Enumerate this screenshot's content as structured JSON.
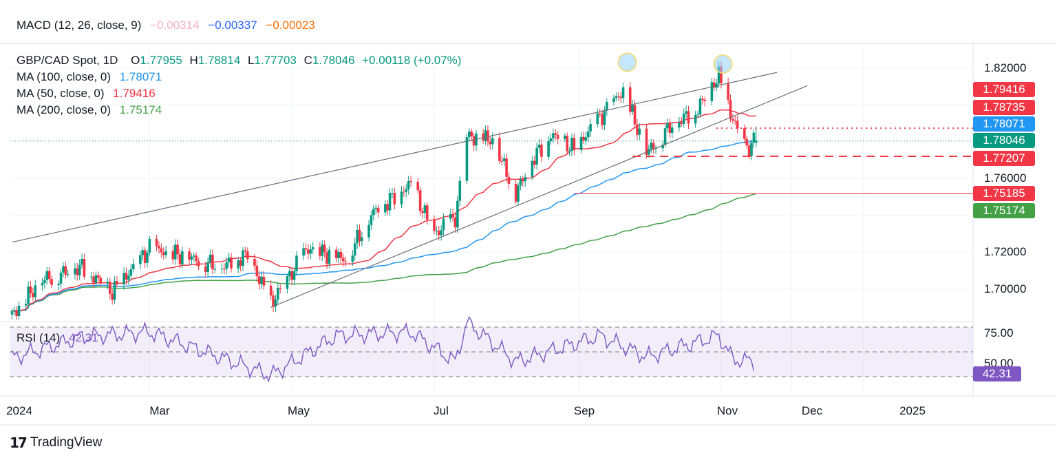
{
  "macd": {
    "label": "MACD (12, 26, close, 9)",
    "v1": "−0.00314",
    "v2": "−0.00337",
    "v3": "−0.00023"
  },
  "legend": {
    "symbol": "GBP/CAD Spot, 1D",
    "o_k": "O",
    "o": "1.77955",
    "h_k": "H",
    "h": "1.78814",
    "l_k": "L",
    "l": "1.77703",
    "c_k": "C",
    "c": "1.78046",
    "chg": "+0.00118 (+0.07%)",
    "ma100": {
      "label": "MA (100, close, 0)",
      "value": "1.78071",
      "color": "#2196f3"
    },
    "ma50": {
      "label": "MA (50, close, 0)",
      "value": "1.79416",
      "color": "#f23645"
    },
    "ma200": {
      "label": "MA (200, close, 0)",
      "value": "1.75174",
      "color": "#43a047"
    }
  },
  "rsi": {
    "label": "RSI (14)",
    "value": "42.31",
    "ticks": [
      "75.00",
      "50.00"
    ]
  },
  "price_axis": {
    "ticks": [
      "1.82000",
      "1.76000",
      "1.72000",
      "1.70000"
    ]
  },
  "price_labels": [
    {
      "text": "1.79416",
      "color": "#f23645"
    },
    {
      "text": "1.78735",
      "color": "#f23645"
    },
    {
      "text": "1.78071",
      "color": "#2196f3"
    },
    {
      "text": "1.78046",
      "color": "#089981"
    },
    {
      "text": "1.77207",
      "color": "#f23645"
    },
    {
      "text": "1.75185",
      "color": "#f23645"
    },
    {
      "text": "1.75174",
      "color": "#43a047"
    },
    {
      "text": "42.31",
      "color": "#7e57c2"
    }
  ],
  "time_axis": [
    "2024",
    "Mar",
    "May",
    "Jul",
    "Sep",
    "Nov",
    "Dec",
    "2025"
  ],
  "brand": {
    "name": "TradingView"
  },
  "chart_data": [
    {
      "type": "candlestick",
      "title": "GBP/CAD Spot, 1D",
      "x_range": [
        "2024-01",
        "2024-11"
      ],
      "ylim": [
        1.68,
        1.83
      ],
      "last": {
        "open": 1.77955,
        "high": 1.78814,
        "low": 1.77703,
        "close": 1.78046
      },
      "close_path": [
        [
          "2024-01-02",
          1.686
        ],
        [
          "2024-01-15",
          1.705
        ],
        [
          "2024-02-01",
          1.712
        ],
        [
          "2024-02-14",
          1.698
        ],
        [
          "2024-03-01",
          1.722
        ],
        [
          "2024-03-15",
          1.718
        ],
        [
          "2024-04-01",
          1.712
        ],
        [
          "2024-04-12",
          1.719
        ],
        [
          "2024-04-22",
          1.692
        ],
        [
          "2024-05-08",
          1.722
        ],
        [
          "2024-05-24",
          1.716
        ],
        [
          "2024-06-05",
          1.742
        ],
        [
          "2024-06-21",
          1.757
        ],
        [
          "2024-07-01",
          1.73
        ],
        [
          "2024-07-10",
          1.738
        ],
        [
          "2024-07-15",
          1.783
        ],
        [
          "2024-07-26",
          1.781
        ],
        [
          "2024-08-05",
          1.752
        ],
        [
          "2024-08-12",
          1.77
        ],
        [
          "2024-08-20",
          1.784
        ],
        [
          "2024-08-30",
          1.776
        ],
        [
          "2024-09-10",
          1.793
        ],
        [
          "2024-09-20",
          1.808
        ],
        [
          "2024-09-30",
          1.774
        ],
        [
          "2024-10-10",
          1.788
        ],
        [
          "2024-10-22",
          1.798
        ],
        [
          "2024-10-31",
          1.816
        ],
        [
          "2024-11-06",
          1.792
        ],
        [
          "2024-11-12",
          1.776
        ],
        [
          "2024-11-15",
          1.78
        ]
      ],
      "series": [
        {
          "name": "MA (100, close, 0)",
          "last": 1.78071
        },
        {
          "name": "MA (50, close, 0)",
          "last": 1.79416
        },
        {
          "name": "MA (200, close, 0)",
          "last": 1.75174
        }
      ],
      "levels": [
        1.78735,
        1.77207,
        1.75185
      ],
      "highlighted_peaks": [
        [
          "2024-09-20",
          1.824
        ],
        [
          "2024-10-31",
          1.823
        ]
      ]
    },
    {
      "type": "line",
      "title": "RSI (14)",
      "ylim": [
        20,
        80
      ],
      "bands": [
        30,
        50,
        70
      ],
      "x": [
        "2024-01-02",
        "2024-02-01",
        "2024-03-01",
        "2024-04-22",
        "2024-05-20",
        "2024-06-21",
        "2024-07-10",
        "2024-07-15",
        "2024-08-05",
        "2024-09-10",
        "2024-09-30",
        "2024-10-31",
        "2024-11-06",
        "2024-11-15"
      ],
      "values": [
        45,
        62,
        66,
        31,
        63,
        66,
        42,
        74,
        42,
        63,
        46,
        63,
        44,
        42.31
      ]
    }
  ]
}
